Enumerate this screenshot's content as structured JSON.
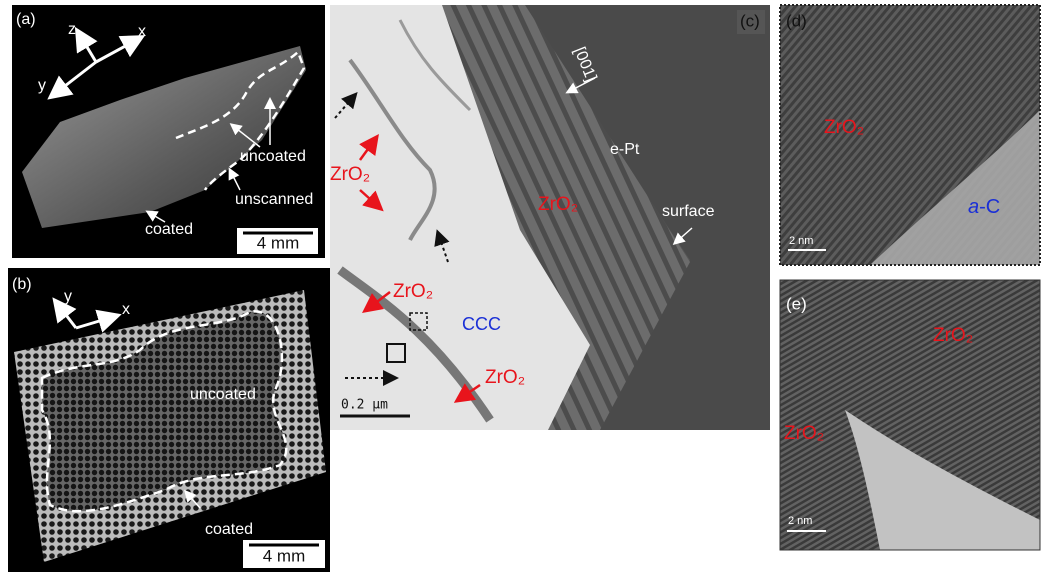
{
  "panel_a": {
    "label": "(a)",
    "axes": {
      "z": "z",
      "x": "x",
      "y": "y"
    },
    "annotations": {
      "uncoated": "uncoated",
      "unscanned": "unscanned",
      "coated": "coated"
    },
    "scale_bar": "4 mm"
  },
  "panel_b": {
    "label": "(b)",
    "axes": {
      "y": "y",
      "x": "x"
    },
    "annotations": {
      "uncoated": "uncoated",
      "coated": "coated"
    },
    "scale_bar": "4 mm"
  },
  "panel_c": {
    "label": "(c)",
    "annotations": {
      "direction": "[001]",
      "e_pt": "e-Pt",
      "zro2_layer": "ZrO₂",
      "surface": "surface",
      "zro2_left": "ZrO₂",
      "zro2_middle": "ZrO₂",
      "ccc": "CCC",
      "zro2_bottom": "ZrO₂"
    },
    "scale_bar": "0.2 µm"
  },
  "panel_d": {
    "label": "(d)",
    "annotations": {
      "zro2": "ZrO₂",
      "carbon": {
        "italic": "a",
        "rest": "-C"
      }
    },
    "scale_bar": "2 nm"
  },
  "panel_e": {
    "label": "(e)",
    "annotations": {
      "zro2_top": "ZrO₂",
      "zro2_left": "ZrO₂"
    },
    "scale_bar": "2 nm"
  }
}
